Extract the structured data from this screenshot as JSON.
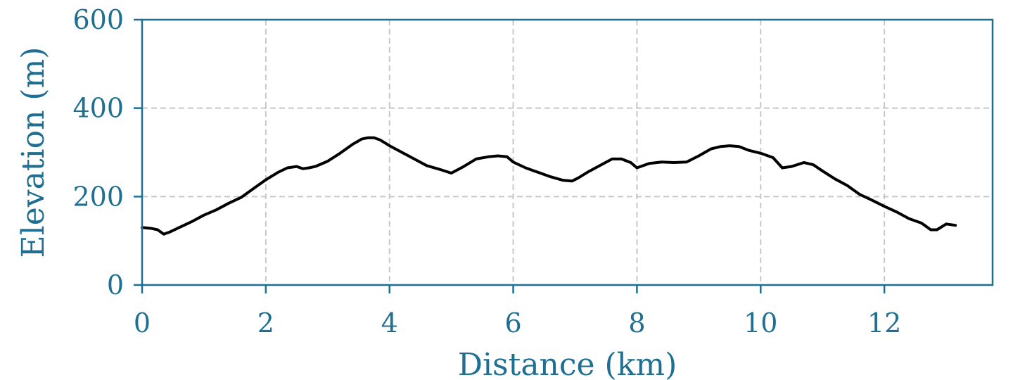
{
  "chart_data": {
    "type": "line",
    "title": "",
    "xlabel": "Distance (km)",
    "ylabel": "Elevation (m)",
    "xlim": [
      0,
      13.75
    ],
    "ylim": [
      0,
      600
    ],
    "x_ticks": [
      0,
      2,
      4,
      6,
      8,
      10,
      12
    ],
    "y_ticks": [
      0,
      200,
      400,
      600
    ],
    "x_tick_labels": [
      "0",
      "2",
      "4",
      "6",
      "8",
      "10",
      "12"
    ],
    "y_tick_labels": [
      "0",
      "200",
      "400",
      "600"
    ],
    "grid": true,
    "colors": {
      "axis": "#1f6f93",
      "line": "#000000",
      "grid": "#c8c8c8"
    },
    "series": [
      {
        "x": [
          0,
          0.15,
          0.25,
          0.35,
          0.45,
          0.6,
          0.8,
          1.0,
          1.2,
          1.4,
          1.6,
          1.8,
          2.0,
          2.2,
          2.35,
          2.5,
          2.6,
          2.7,
          2.8,
          3.0,
          3.2,
          3.4,
          3.55,
          3.65,
          3.75,
          3.85,
          4.0,
          4.2,
          4.4,
          4.6,
          4.8,
          5.0,
          5.2,
          5.4,
          5.6,
          5.75,
          5.9,
          6.0,
          6.2,
          6.4,
          6.6,
          6.8,
          6.95,
          7.05,
          7.2,
          7.4,
          7.6,
          7.75,
          7.9,
          8.0,
          8.2,
          8.4,
          8.6,
          8.8,
          9.0,
          9.2,
          9.35,
          9.5,
          9.65,
          9.8,
          10.0,
          10.2,
          10.35,
          10.5,
          10.7,
          10.85,
          11.0,
          11.2,
          11.4,
          11.6,
          11.8,
          12.0,
          12.2,
          12.4,
          12.6,
          12.75,
          12.85,
          13.0,
          13.15
        ],
        "y": [
          130,
          128,
          125,
          115,
          120,
          130,
          143,
          158,
          170,
          185,
          198,
          218,
          238,
          255,
          265,
          268,
          263,
          265,
          268,
          280,
          298,
          318,
          330,
          333,
          333,
          328,
          315,
          300,
          285,
          270,
          262,
          253,
          268,
          285,
          290,
          292,
          290,
          278,
          265,
          255,
          245,
          237,
          235,
          242,
          255,
          270,
          285,
          285,
          277,
          265,
          275,
          278,
          277,
          278,
          292,
          308,
          313,
          315,
          313,
          305,
          298,
          288,
          265,
          268,
          277,
          272,
          258,
          240,
          225,
          205,
          192,
          178,
          165,
          150,
          140,
          125,
          125,
          138,
          135
        ]
      }
    ]
  }
}
